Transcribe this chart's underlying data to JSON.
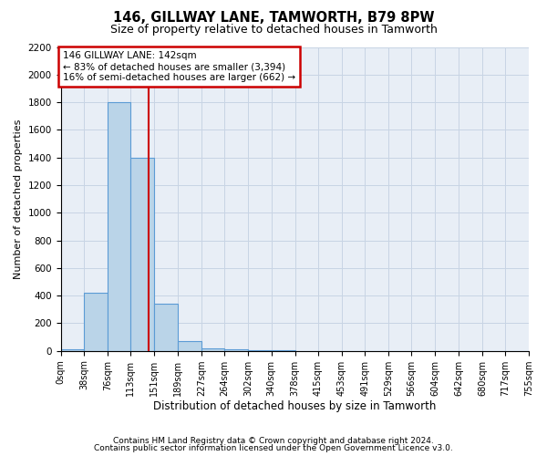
{
  "title1": "146, GILLWAY LANE, TAMWORTH, B79 8PW",
  "title2": "Size of property relative to detached houses in Tamworth",
  "xlabel": "Distribution of detached houses by size in Tamworth",
  "ylabel": "Number of detached properties",
  "annotation_line1": "146 GILLWAY LANE: 142sqm",
  "annotation_line2": "← 83% of detached houses are smaller (3,394)",
  "annotation_line3": "16% of semi-detached houses are larger (662) →",
  "footnote1": "Contains HM Land Registry data © Crown copyright and database right 2024.",
  "footnote2": "Contains public sector information licensed under the Open Government Licence v3.0.",
  "property_size": 142,
  "bar_edges": [
    0,
    38,
    76,
    113,
    151,
    189,
    227,
    264,
    302,
    340,
    378,
    415,
    453,
    491,
    529,
    566,
    604,
    642,
    680,
    717,
    755
  ],
  "bar_heights": [
    10,
    420,
    1800,
    1400,
    340,
    70,
    20,
    10,
    5,
    2,
    1,
    0,
    0,
    0,
    0,
    0,
    0,
    0,
    0,
    0
  ],
  "bar_color": "#bad4e8",
  "bar_edgecolor": "#5b9bd5",
  "vline_color": "#cc0000",
  "annotation_box_color": "#cc0000",
  "grid_color": "#c8d4e4",
  "bg_color": "#e8eef6",
  "ylim": [
    0,
    2200
  ],
  "yticks": [
    0,
    200,
    400,
    600,
    800,
    1000,
    1200,
    1400,
    1600,
    1800,
    2000,
    2200
  ]
}
